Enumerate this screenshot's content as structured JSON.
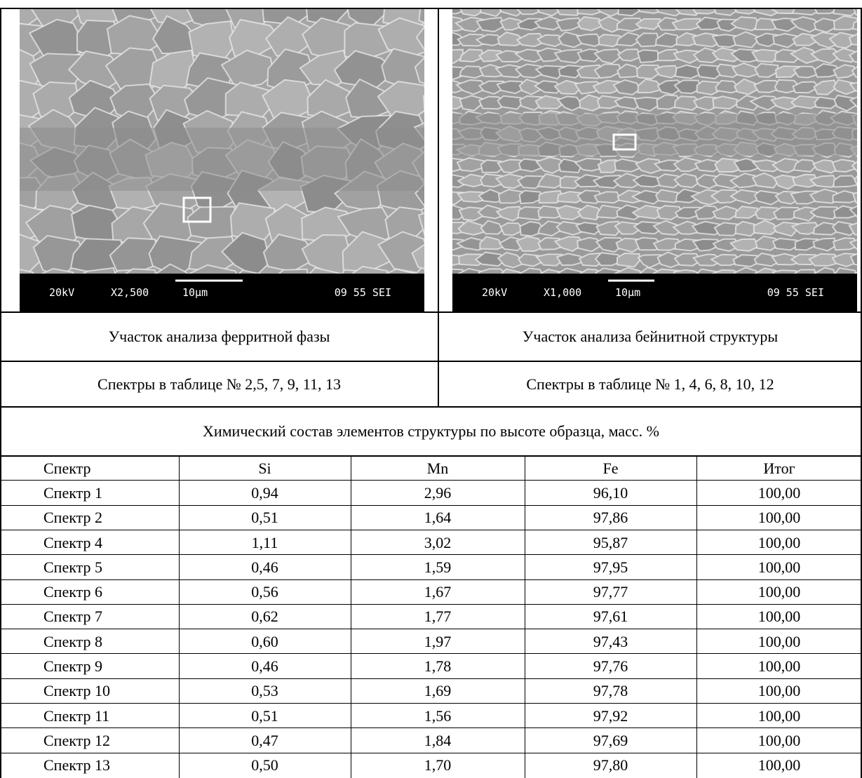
{
  "images": [
    {
      "voltage": "20kV",
      "magnification": "X2,500",
      "scale": "10µm",
      "code": "09 55 SEI"
    },
    {
      "voltage": "20kV",
      "magnification": "X1,000",
      "scale": "10µm",
      "code": "09 55 SEI"
    }
  ],
  "captions": [
    "Участок анализа ферритной фазы",
    "Участок анализа бейнитной структуры"
  ],
  "spectra_notes": [
    "Спектры в таблице № 2,5, 7, 9, 11, 13",
    "Спектры в таблице № 1, 4, 6, 8, 10, 12"
  ],
  "table": {
    "title": "Химический состав элементов структуры по высоте образца, масс. %",
    "header": [
      "Спектр",
      "Si",
      "Mn",
      "Fe",
      "Итог"
    ],
    "rows": [
      [
        "Спектр 1",
        "0,94",
        "2,96",
        "96,10",
        "100,00"
      ],
      [
        "Спектр 2",
        "0,51",
        "1,64",
        "97,86",
        "100,00"
      ],
      [
        "Спектр 4",
        "1,11",
        "3,02",
        "95,87",
        "100,00"
      ],
      [
        "Спектр 5",
        "0,46",
        "1,59",
        "97,95",
        "100,00"
      ],
      [
        "Спектр 6",
        "0,56",
        "1,67",
        "97,77",
        "100,00"
      ],
      [
        "Спектр 7",
        "0,62",
        "1,77",
        "97,61",
        "100,00"
      ],
      [
        "Спектр 8",
        "0,60",
        "1,97",
        "97,43",
        "100,00"
      ],
      [
        "Спектр 9",
        "0,46",
        "1,78",
        "97,76",
        "100,00"
      ],
      [
        "Спектр 10",
        "0,53",
        "1,69",
        "97,78",
        "100,00"
      ],
      [
        "Спектр 11",
        "0,51",
        "1,56",
        "97,92",
        "100,00"
      ],
      [
        "Спектр 12",
        "0,47",
        "1,84",
        "97,69",
        "100,00"
      ],
      [
        "Спектр 13",
        "0,50",
        "1,70",
        "97,80",
        "100,00"
      ]
    ]
  }
}
